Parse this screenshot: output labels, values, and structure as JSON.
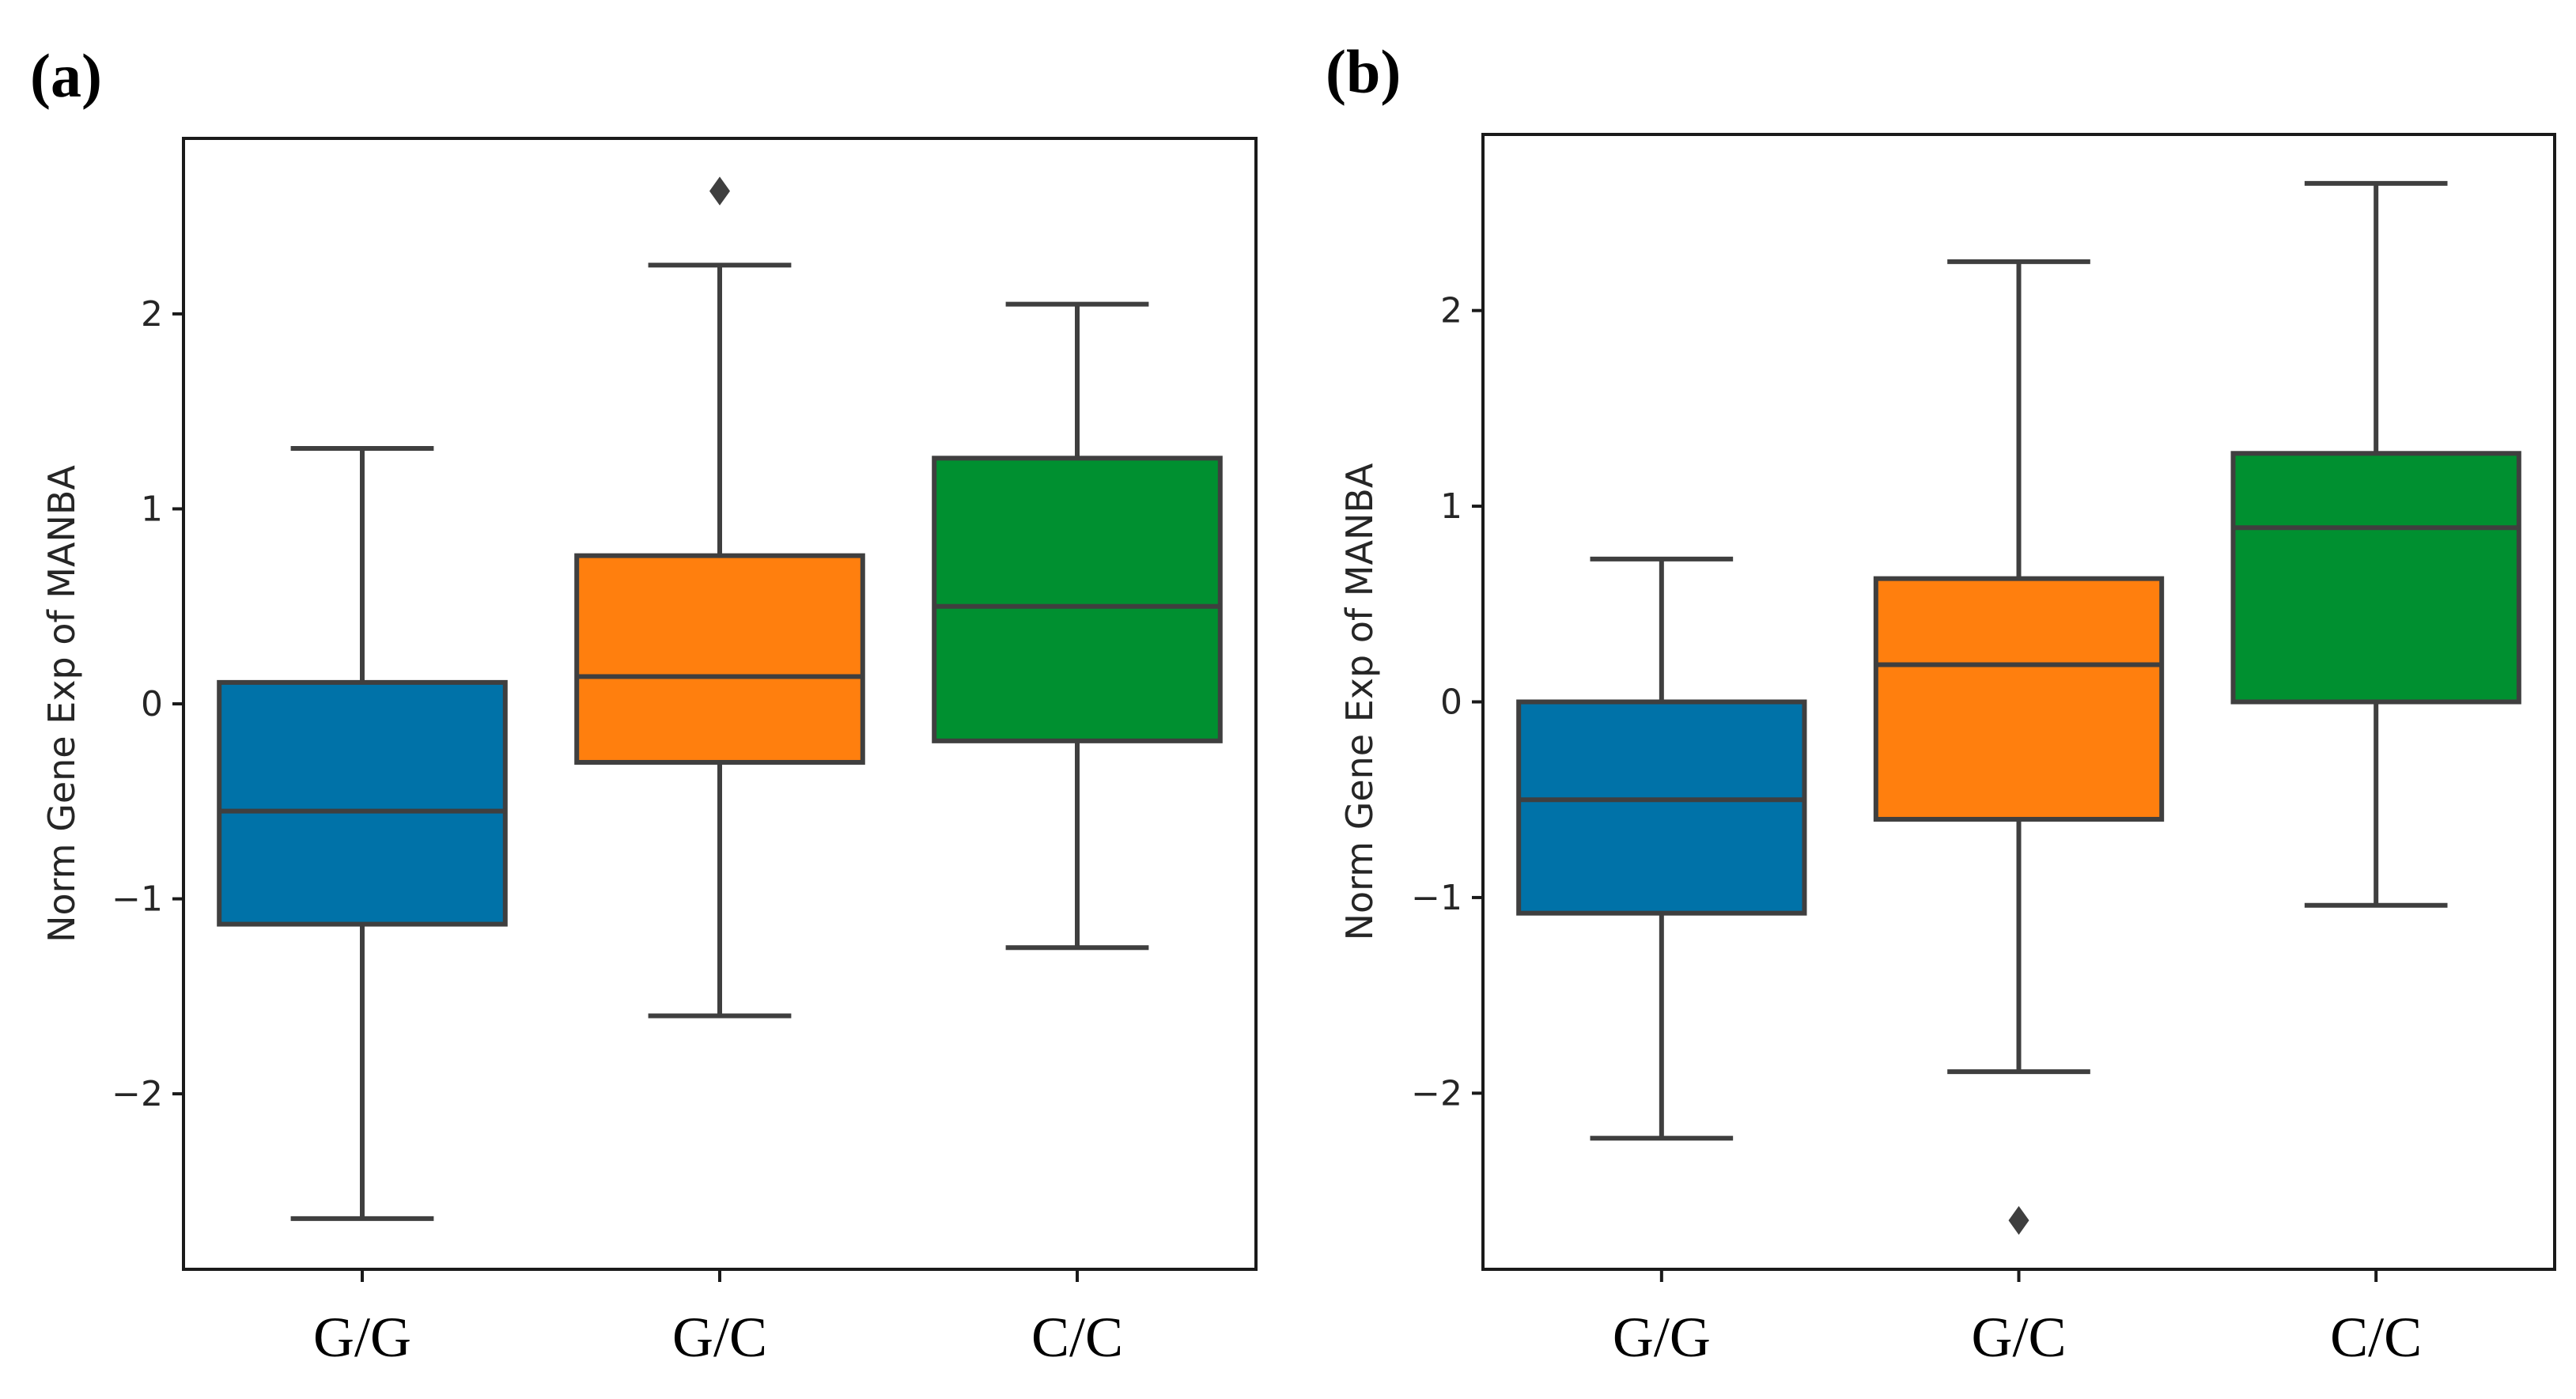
{
  "chart_data": [
    {
      "type": "boxplot",
      "panel_label": "(a)",
      "xlabel": "",
      "ylabel": "Norm Gene Exp of MANBA",
      "ylim": [
        -2.9,
        2.9
      ],
      "yticks": [
        -2,
        -1,
        0,
        1,
        2
      ],
      "ytick_labels": [
        "−2",
        "−1",
        "0",
        "1",
        "2"
      ],
      "categories": [
        "G/G",
        "G/C",
        "C/C"
      ],
      "colors": [
        "#0072a8",
        "#ff7f0e",
        "#009030"
      ],
      "boxes": [
        {
          "whislo": -2.64,
          "q1": -1.13,
          "med": -0.55,
          "q3": 0.11,
          "whishi": 1.31,
          "fliers": []
        },
        {
          "whislo": -1.6,
          "q1": -0.3,
          "med": 0.14,
          "q3": 0.76,
          "whishi": 2.25,
          "fliers": [
            2.63
          ]
        },
        {
          "whislo": -1.25,
          "q1": -0.19,
          "med": 0.5,
          "q3": 1.26,
          "whishi": 2.05,
          "fliers": []
        }
      ]
    },
    {
      "type": "boxplot",
      "panel_label": "(b)",
      "xlabel": "",
      "ylabel": "Norm Gene Exp of MANBA",
      "ylim": [
        -2.9,
        2.9
      ],
      "yticks": [
        -2,
        -1,
        0,
        1,
        2
      ],
      "ytick_labels": [
        "−2",
        "−1",
        "0",
        "1",
        "2"
      ],
      "categories": [
        "G/G",
        "G/C",
        "C/C"
      ],
      "colors": [
        "#0072a8",
        "#ff7f0e",
        "#009030"
      ],
      "boxes": [
        {
          "whislo": -2.23,
          "q1": -1.08,
          "med": -0.5,
          "q3": 0.0,
          "whishi": 0.73,
          "fliers": []
        },
        {
          "whislo": -1.89,
          "q1": -0.6,
          "med": 0.19,
          "q3": 0.63,
          "whishi": 2.25,
          "fliers": [
            -2.65
          ]
        },
        {
          "whislo": -1.04,
          "q1": 0.0,
          "med": 0.89,
          "q3": 1.27,
          "whishi": 2.65,
          "fliers": []
        }
      ]
    }
  ]
}
